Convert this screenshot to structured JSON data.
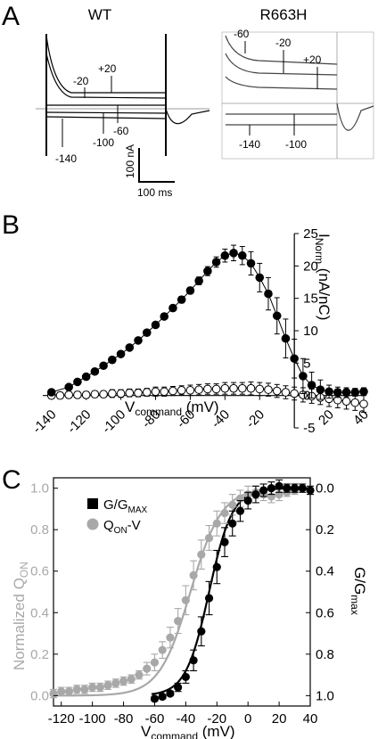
{
  "panels": {
    "a": {
      "letter": "A"
    },
    "b": {
      "letter": "B"
    },
    "c": {
      "letter": "C"
    }
  },
  "traces": {
    "wt": {
      "title": "WT",
      "labels": [
        "+20",
        "-20",
        "-60",
        "-100",
        "-140"
      ],
      "scalebar_y": "100 nA",
      "scalebar_x": "100 ms"
    },
    "mut": {
      "title": "R663H",
      "labels": [
        "-60",
        "-20",
        "+20",
        "-140",
        "-100"
      ]
    }
  },
  "chart_data": [
    {
      "type": "line",
      "panel": "B",
      "xlabel_main": "V",
      "xlabel_sub": "command",
      "xlabel_unit": " (mV)",
      "ylabel_main": "I",
      "ylabel_sub": "Norm",
      "ylabel_unit": " (nA/nC)",
      "xlim": [
        -145,
        40
      ],
      "ylim": [
        -5,
        25
      ],
      "x_ticks": [
        "-140",
        "-120",
        "-100",
        "-80",
        "-60",
        "-40",
        "-20",
        "20",
        "40"
      ],
      "y_ticks": [
        "25",
        "20",
        "15",
        "10",
        "5",
        "0",
        "-5"
      ],
      "series": [
        {
          "style": "filled",
          "x": [
            -140,
            -130,
            -125,
            -120,
            -115,
            -110,
            -105,
            -100,
            -95,
            -90,
            -85,
            -80,
            -75,
            -70,
            -65,
            -60,
            -55,
            -50,
            -45,
            -40,
            -35,
            -30,
            -25,
            -20,
            -15,
            -10,
            -5,
            0,
            5,
            10,
            15,
            20,
            25,
            30,
            35,
            40
          ],
          "y": [
            0.5,
            1.3,
            2.1,
            2.9,
            3.7,
            4.6,
            5.5,
            6.4,
            7.4,
            8.5,
            9.7,
            10.9,
            12.2,
            13.5,
            14.8,
            16.2,
            17.7,
            19.2,
            20.6,
            21.6,
            22.0,
            21.6,
            20.4,
            18.2,
            15.7,
            12.3,
            8.8,
            5.7,
            3.0,
            1.6,
            0.9,
            0.6,
            0.5,
            0.5,
            0.5,
            0.6
          ],
          "err": [
            0.3,
            0.3,
            0.3,
            0.3,
            0.3,
            0.3,
            0.3,
            0.3,
            0.3,
            0.3,
            0.3,
            0.4,
            0.4,
            0.4,
            0.5,
            0.5,
            0.6,
            0.7,
            0.8,
            1.0,
            1.2,
            1.4,
            1.8,
            2.2,
            2.5,
            2.8,
            3.0,
            3.0,
            2.7,
            2.0,
            1.5,
            1.0,
            0.8,
            0.7,
            0.6,
            0.6
          ]
        },
        {
          "style": "open",
          "x": [
            -140,
            -135,
            -130,
            -125,
            -120,
            -115,
            -110,
            -105,
            -100,
            -95,
            -90,
            -85,
            -80,
            -75,
            -70,
            -65,
            -60,
            -55,
            -50,
            -45,
            -40,
            -35,
            -30,
            -25,
            -20,
            -15,
            -10,
            -5,
            0,
            5,
            10,
            15,
            20,
            25,
            30,
            35,
            40
          ],
          "y": [
            0.0,
            0.0,
            0.1,
            0.1,
            0.1,
            0.2,
            0.2,
            0.3,
            0.3,
            0.4,
            0.4,
            0.5,
            0.6,
            0.6,
            0.7,
            0.8,
            0.8,
            0.9,
            1.0,
            1.0,
            1.1,
            1.1,
            1.1,
            1.1,
            1.0,
            0.9,
            0.7,
            0.5,
            0.3,
            0.1,
            -0.1,
            -0.3,
            -0.5,
            -0.7,
            -0.9,
            -1.1,
            -1.3
          ],
          "err": [
            0.5,
            0.5,
            0.5,
            0.5,
            0.5,
            0.5,
            0.5,
            0.6,
            0.6,
            0.6,
            0.6,
            0.6,
            0.7,
            0.7,
            0.7,
            0.7,
            0.8,
            0.8,
            0.8,
            0.8,
            0.9,
            0.9,
            0.9,
            1.0,
            1.0,
            1.0,
            1.0,
            1.0,
            1.0,
            1.1,
            1.1,
            1.1,
            1.2,
            1.2,
            1.2,
            1.2,
            1.3
          ]
        }
      ]
    },
    {
      "type": "scatter",
      "panel": "C",
      "xlabel_main": "V",
      "xlabel_sub": "command",
      "xlabel_unit": " (mV)",
      "ylabel_left_a": "Normalized Q",
      "ylabel_left_sub": "ON",
      "ylabel_right_main": "G/G",
      "ylabel_right_sub": "max",
      "xlim": [
        -125,
        40
      ],
      "ylim_left": [
        -0.05,
        1.05
      ],
      "ylim_right": [
        1.05,
        -0.05
      ],
      "x_ticks": [
        "-120",
        "-100",
        "-80",
        "-60",
        "-40",
        "-20",
        "0",
        "20",
        "40"
      ],
      "y_ticks_left": [
        "0.0",
        "0.2",
        "0.4",
        "0.6",
        "0.8",
        "1.0"
      ],
      "y_ticks_right": [
        "0.0",
        "0.2",
        "0.4",
        "0.6",
        "0.8",
        "1.0"
      ],
      "colors": {
        "g": "#000000",
        "q": "#a8a8a8"
      },
      "legend": [
        {
          "main": "G/G",
          "sub": "MAX",
          "marker": "square",
          "color": "#000000"
        },
        {
          "main": "Q",
          "sub": "ON",
          "tail": "-V",
          "marker": "circle",
          "color": "#a8a8a8"
        }
      ],
      "series": [
        {
          "key": "q",
          "x": [
            -125,
            -120,
            -115,
            -110,
            -105,
            -100,
            -95,
            -90,
            -85,
            -80,
            -75,
            -70,
            -65,
            -60,
            -55,
            -50,
            -45,
            -40,
            -35,
            -30,
            -25,
            -20,
            -15,
            -10,
            -5,
            0,
            5,
            10,
            15,
            20,
            25,
            30
          ],
          "y": [
            0.01,
            0.02,
            0.02,
            0.03,
            0.03,
            0.04,
            0.04,
            0.05,
            0.06,
            0.07,
            0.08,
            0.1,
            0.13,
            0.16,
            0.22,
            0.28,
            0.36,
            0.46,
            0.58,
            0.68,
            0.76,
            0.83,
            0.88,
            0.92,
            0.95,
            0.97,
            0.98,
            0.97,
            0.96,
            0.97,
            0.98,
            0.99
          ],
          "err": [
            0.02,
            0.02,
            0.02,
            0.02,
            0.02,
            0.02,
            0.02,
            0.02,
            0.02,
            0.02,
            0.02,
            0.02,
            0.03,
            0.04,
            0.04,
            0.05,
            0.06,
            0.07,
            0.07,
            0.07,
            0.06,
            0.06,
            0.05,
            0.05,
            0.04,
            0.04,
            0.03,
            0.03,
            0.03,
            0.03,
            0.02,
            0.02
          ]
        },
        {
          "key": "g",
          "x": [
            -60,
            -55,
            -50,
            -45,
            -40,
            -35,
            -30,
            -25,
            -20,
            -15,
            -10,
            -5,
            0,
            5,
            10,
            15,
            20,
            25,
            30,
            35,
            40
          ],
          "y": [
            -0.015,
            -0.005,
            0.01,
            0.04,
            0.09,
            0.17,
            0.31,
            0.47,
            0.62,
            0.74,
            0.83,
            0.89,
            0.94,
            0.97,
            0.99,
            1.0,
            1.01,
            1.0,
            1.0,
            1.0,
            0.99
          ],
          "err": [
            0.01,
            0.01,
            0.01,
            0.02,
            0.03,
            0.05,
            0.07,
            0.08,
            0.08,
            0.07,
            0.06,
            0.05,
            0.04,
            0.04,
            0.03,
            0.03,
            0.03,
            0.02,
            0.02,
            0.02,
            0.02
          ]
        }
      ]
    }
  ]
}
